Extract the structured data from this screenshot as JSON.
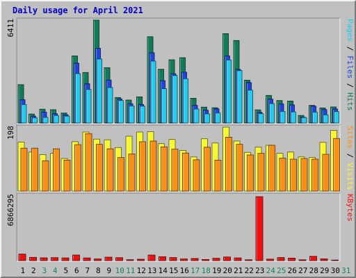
{
  "title": "Daily usage for April 2021",
  "colors": {
    "hits": "#117c5c",
    "files": "#2244dd",
    "pages": "#22ccf0",
    "visits": "#f8f830",
    "sites": "#f89018",
    "kbytes": "#ee1111",
    "title": "#0000c8",
    "panel_bg": "#c0c0c0",
    "weekday_label": "#000000",
    "weekend_label": "#118855"
  },
  "chart_data": [
    {
      "type": "bar",
      "name": "hits-files-pages",
      "ymax_label": "6411",
      "ylim": [
        0,
        6411
      ],
      "right_label": [
        {
          "text": "Pages",
          "color": "#22ccf0"
        },
        {
          "text": " / ",
          "color": "#000000"
        },
        {
          "text": "Files",
          "color": "#2244dd"
        },
        {
          "text": " / ",
          "color": "#000000"
        },
        {
          "text": "Hits",
          "color": "#117c5c"
        }
      ],
      "categories": [
        "1",
        "2",
        "3",
        "4",
        "5",
        "6",
        "7",
        "8",
        "9",
        "10",
        "11",
        "12",
        "13",
        "14",
        "15",
        "16",
        "17",
        "18",
        "19",
        "20",
        "21",
        "22",
        "23",
        "24",
        "25",
        "26",
        "27",
        "28",
        "29",
        "30"
      ],
      "series": [
        {
          "name": "Hits",
          "values": [
            2390,
            560,
            860,
            830,
            620,
            4180,
            3150,
            6411,
            3450,
            1590,
            1430,
            1630,
            5380,
            3350,
            3940,
            4070,
            1540,
            990,
            950,
            5570,
            5140,
            2670,
            820,
            1720,
            1400,
            1370,
            470,
            1100,
            940,
            1000
          ]
        },
        {
          "name": "Files",
          "values": [
            1450,
            430,
            680,
            580,
            510,
            3730,
            2450,
            4660,
            2680,
            1500,
            1200,
            1160,
            4380,
            2640,
            3070,
            3170,
            1100,
            800,
            880,
            4180,
            3340,
            2520,
            670,
            1490,
            1190,
            1130,
            360,
            1050,
            840,
            870
          ]
        },
        {
          "name": "Pages",
          "values": [
            1150,
            330,
            350,
            470,
            430,
            3080,
            2090,
            3990,
            2210,
            1400,
            1070,
            1050,
            3860,
            2140,
            2960,
            2760,
            870,
            570,
            630,
            3930,
            3270,
            2050,
            580,
            1210,
            720,
            690,
            340,
            680,
            510,
            710
          ]
        }
      ]
    },
    {
      "type": "bar",
      "name": "visits-sites",
      "ymax_label": "198",
      "ylim": [
        0,
        198
      ],
      "right_label": [
        {
          "text": "Sites",
          "color": "#f89018"
        },
        {
          "text": " / ",
          "color": "#000000"
        },
        {
          "text": "Visits",
          "color": "#f8f830"
        }
      ],
      "categories": [
        "1",
        "2",
        "3",
        "4",
        "5",
        "6",
        "7",
        "8",
        "9",
        "10",
        "11",
        "12",
        "13",
        "14",
        "15",
        "16",
        "17",
        "18",
        "19",
        "20",
        "21",
        "22",
        "23",
        "24",
        "25",
        "26",
        "27",
        "28",
        "29",
        "30"
      ],
      "series": [
        {
          "name": "Visits",
          "values": [
            152,
            121,
            113,
            117,
            101,
            153,
            183,
            161,
            159,
            135,
            170,
            183,
            184,
            147,
            160,
            126,
            106,
            162,
            149,
            198,
            155,
            120,
            136,
            142,
            117,
            121,
            106,
            104,
            151,
            188
          ]
        },
        {
          "name": "Sites",
          "values": [
            133,
            133,
            94,
            131,
            96,
            144,
            178,
            145,
            131,
            104,
            115,
            153,
            155,
            137,
            130,
            118,
            97,
            136,
            96,
            167,
            145,
            112,
            117,
            142,
            102,
            99,
            101,
            99,
            114,
            163
          ]
        }
      ]
    },
    {
      "type": "bar",
      "name": "kbytes",
      "ymax_label": "6866295",
      "ylim": [
        0,
        6866295
      ],
      "right_label": [
        {
          "text": "KBytes",
          "color": "#ee1111"
        }
      ],
      "categories": [
        "1",
        "2",
        "3",
        "4",
        "5",
        "6",
        "7",
        "8",
        "9",
        "10",
        "11",
        "12",
        "13",
        "14",
        "15",
        "16",
        "17",
        "18",
        "19",
        "20",
        "21",
        "22",
        "23",
        "24",
        "25",
        "26",
        "27",
        "28",
        "29",
        "30"
      ],
      "series": [
        {
          "name": "KBytes",
          "values": [
            700000,
            350000,
            300000,
            320000,
            290000,
            600000,
            290000,
            180000,
            370000,
            320000,
            100000,
            150000,
            600000,
            420000,
            330000,
            180000,
            230000,
            120000,
            250000,
            390000,
            290000,
            90000,
            6866295,
            160000,
            330000,
            270000,
            90000,
            460000,
            190000,
            60000
          ]
        }
      ]
    }
  ],
  "day_labels": [
    {
      "text": "1",
      "weekend": false
    },
    {
      "text": "2",
      "weekend": false
    },
    {
      "text": "3",
      "weekend": true
    },
    {
      "text": "4",
      "weekend": true
    },
    {
      "text": "5",
      "weekend": false
    },
    {
      "text": "6",
      "weekend": false
    },
    {
      "text": "7",
      "weekend": false
    },
    {
      "text": "8",
      "weekend": false
    },
    {
      "text": "9",
      "weekend": false
    },
    {
      "text": "10",
      "weekend": true
    },
    {
      "text": "11",
      "weekend": true
    },
    {
      "text": "12",
      "weekend": false
    },
    {
      "text": "13",
      "weekend": false
    },
    {
      "text": "14",
      "weekend": false
    },
    {
      "text": "15",
      "weekend": false
    },
    {
      "text": "16",
      "weekend": false
    },
    {
      "text": "17",
      "weekend": true
    },
    {
      "text": "18",
      "weekend": true
    },
    {
      "text": "19",
      "weekend": false
    },
    {
      "text": "20",
      "weekend": false
    },
    {
      "text": "21",
      "weekend": false
    },
    {
      "text": "22",
      "weekend": false
    },
    {
      "text": "23",
      "weekend": false
    },
    {
      "text": "24",
      "weekend": true
    },
    {
      "text": "25",
      "weekend": true
    },
    {
      "text": "26",
      "weekend": false
    },
    {
      "text": "27",
      "weekend": false
    },
    {
      "text": "28",
      "weekend": false
    },
    {
      "text": "29",
      "weekend": false
    },
    {
      "text": "30",
      "weekend": false
    },
    {
      "text": "31",
      "weekend": true
    }
  ]
}
